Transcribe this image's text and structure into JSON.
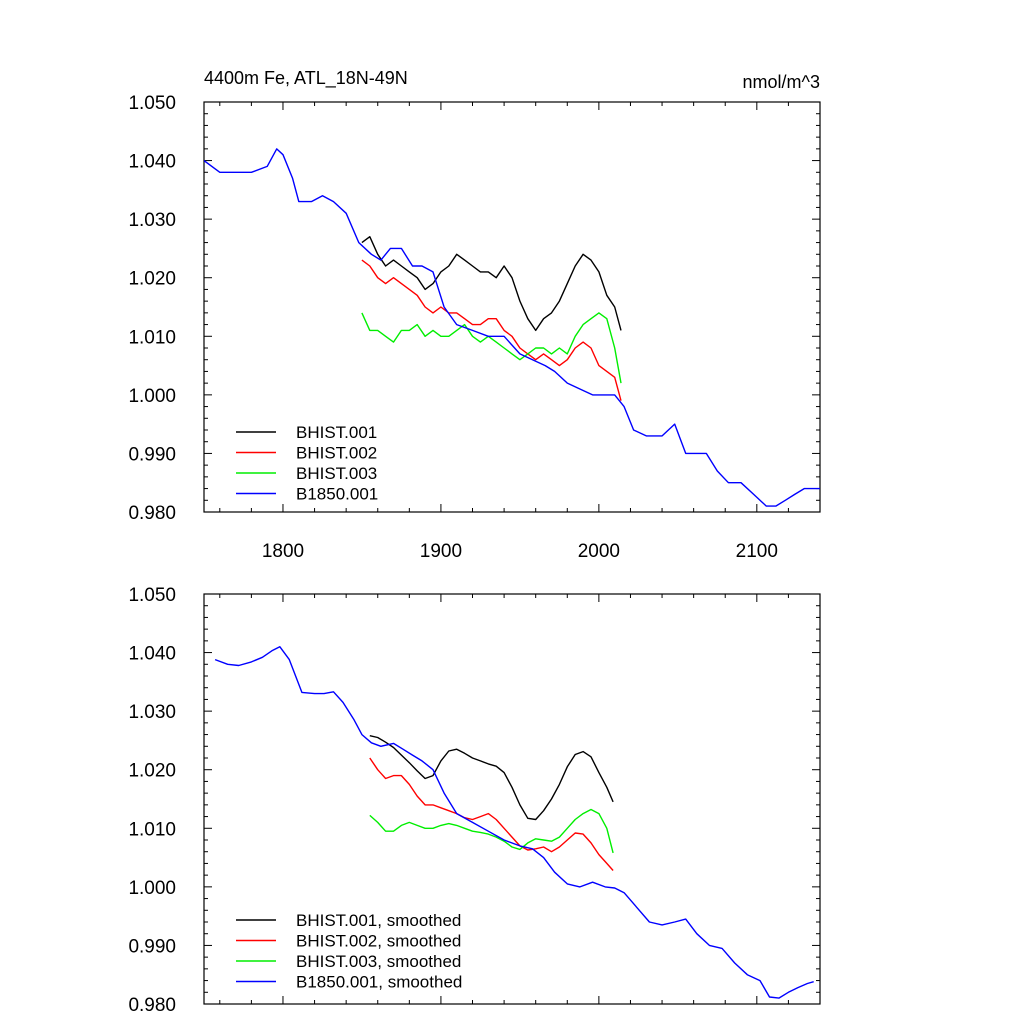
{
  "chart_data": [
    {
      "type": "line",
      "title_left": "4400m Fe, ATL_18N-49N",
      "title_right": "nmol/m^3",
      "xlim": [
        1750,
        2140
      ],
      "ylim": [
        0.98,
        1.05
      ],
      "xticks": [
        1800,
        1900,
        2000,
        2100
      ],
      "xtick_labels": [
        "1800",
        "1900",
        "2000",
        "2100"
      ],
      "yticks": [
        0.98,
        0.99,
        1.0,
        1.01,
        1.02,
        1.03,
        1.04,
        1.05
      ],
      "ytick_labels": [
        "0.980",
        "0.990",
        "1.000",
        "1.010",
        "1.020",
        "1.030",
        "1.040",
        "1.050"
      ],
      "legend_position": "bottom-left",
      "series": [
        {
          "name": "BHIST.001",
          "color": "#000000",
          "x": [
            1850,
            1855,
            1860,
            1865,
            1870,
            1875,
            1880,
            1885,
            1890,
            1895,
            1900,
            1905,
            1910,
            1915,
            1920,
            1925,
            1930,
            1935,
            1940,
            1945,
            1950,
            1955,
            1960,
            1965,
            1970,
            1975,
            1980,
            1985,
            1990,
            1995,
            2000,
            2005,
            2010,
            2014
          ],
          "y": [
            1.026,
            1.027,
            1.024,
            1.022,
            1.023,
            1.022,
            1.021,
            1.02,
            1.018,
            1.019,
            1.021,
            1.022,
            1.024,
            1.023,
            1.022,
            1.021,
            1.021,
            1.02,
            1.022,
            1.02,
            1.016,
            1.013,
            1.011,
            1.013,
            1.014,
            1.016,
            1.019,
            1.022,
            1.024,
            1.023,
            1.021,
            1.017,
            1.015,
            1.011
          ]
        },
        {
          "name": "BHIST.002",
          "color": "#ff0000",
          "x": [
            1850,
            1855,
            1860,
            1865,
            1870,
            1875,
            1880,
            1885,
            1890,
            1895,
            1900,
            1905,
            1910,
            1915,
            1920,
            1925,
            1930,
            1935,
            1940,
            1945,
            1950,
            1955,
            1960,
            1965,
            1970,
            1975,
            1980,
            1985,
            1990,
            1995,
            2000,
            2005,
            2010,
            2014
          ],
          "y": [
            1.023,
            1.022,
            1.02,
            1.019,
            1.02,
            1.019,
            1.018,
            1.017,
            1.015,
            1.014,
            1.015,
            1.014,
            1.014,
            1.013,
            1.012,
            1.012,
            1.013,
            1.013,
            1.011,
            1.01,
            1.008,
            1.007,
            1.006,
            1.007,
            1.006,
            1.005,
            1.006,
            1.008,
            1.009,
            1.008,
            1.005,
            1.004,
            1.003,
            0.999
          ]
        },
        {
          "name": "BHIST.003",
          "color": "#00ee00",
          "x": [
            1850,
            1855,
            1860,
            1865,
            1870,
            1875,
            1880,
            1885,
            1890,
            1895,
            1900,
            1905,
            1910,
            1915,
            1920,
            1925,
            1930,
            1935,
            1940,
            1945,
            1950,
            1955,
            1960,
            1965,
            1970,
            1975,
            1980,
            1985,
            1990,
            1995,
            2000,
            2005,
            2010,
            2014
          ],
          "y": [
            1.014,
            1.011,
            1.011,
            1.01,
            1.009,
            1.011,
            1.011,
            1.012,
            1.01,
            1.011,
            1.01,
            1.01,
            1.011,
            1.012,
            1.01,
            1.009,
            1.01,
            1.009,
            1.008,
            1.007,
            1.006,
            1.007,
            1.008,
            1.008,
            1.007,
            1.008,
            1.007,
            1.01,
            1.012,
            1.013,
            1.014,
            1.013,
            1.008,
            1.002
          ]
        },
        {
          "name": "B1850.001",
          "color": "#0000ff",
          "x": [
            1750,
            1760,
            1770,
            1780,
            1790,
            1796,
            1800,
            1806,
            1810,
            1818,
            1825,
            1832,
            1840,
            1848,
            1856,
            1862,
            1868,
            1875,
            1882,
            1888,
            1895,
            1902,
            1910,
            1920,
            1930,
            1940,
            1950,
            1958,
            1966,
            1972,
            1980,
            1988,
            1996,
            2004,
            2010,
            2016,
            2022,
            2030,
            2040,
            2048,
            2055,
            2062,
            2068,
            2075,
            2082,
            2090,
            2098,
            2106,
            2112,
            2118,
            2124,
            2130,
            2136,
            2140
          ],
          "y": [
            1.04,
            1.038,
            1.038,
            1.038,
            1.039,
            1.042,
            1.041,
            1.037,
            1.033,
            1.033,
            1.034,
            1.033,
            1.031,
            1.026,
            1.024,
            1.023,
            1.025,
            1.025,
            1.022,
            1.022,
            1.021,
            1.015,
            1.012,
            1.011,
            1.01,
            1.01,
            1.007,
            1.006,
            1.005,
            1.004,
            1.002,
            1.001,
            1.0,
            1.0,
            1.0,
            0.998,
            0.994,
            0.993,
            0.993,
            0.995,
            0.99,
            0.99,
            0.99,
            0.987,
            0.985,
            0.985,
            0.983,
            0.981,
            0.981,
            0.982,
            0.983,
            0.984,
            0.984,
            0.984
          ]
        }
      ]
    },
    {
      "type": "line",
      "xlim": [
        1750,
        2140
      ],
      "ylim": [
        0.98,
        1.05
      ],
      "xticks": [
        1800,
        1900,
        2000,
        2100
      ],
      "yticks": [
        0.98,
        0.99,
        1.0,
        1.01,
        1.02,
        1.03,
        1.04,
        1.05
      ],
      "ytick_labels": [
        "0.980",
        "0.990",
        "1.000",
        "1.010",
        "1.020",
        "1.030",
        "1.040",
        "1.050"
      ],
      "legend_position": "bottom-left",
      "series": [
        {
          "name": "BHIST.001, smoothed",
          "color": "#000000",
          "x": [
            1855,
            1860,
            1865,
            1870,
            1875,
            1880,
            1885,
            1890,
            1895,
            1900,
            1905,
            1910,
            1915,
            1920,
            1925,
            1930,
            1935,
            1940,
            1945,
            1950,
            1955,
            1960,
            1965,
            1970,
            1975,
            1980,
            1985,
            1990,
            1995,
            2000,
            2005,
            2009
          ],
          "y": [
            1.0258,
            1.0255,
            1.0247,
            1.0238,
            1.0225,
            1.0212,
            1.0198,
            1.0185,
            1.019,
            1.0215,
            1.0232,
            1.0235,
            1.0228,
            1.022,
            1.0215,
            1.021,
            1.0206,
            1.0195,
            1.017,
            1.014,
            1.0117,
            1.0115,
            1.013,
            1.015,
            1.0175,
            1.0205,
            1.0226,
            1.0231,
            1.0222,
            1.0195,
            1.017,
            1.0145
          ]
        },
        {
          "name": "BHIST.002, smoothed",
          "color": "#ff0000",
          "x": [
            1855,
            1860,
            1865,
            1870,
            1875,
            1880,
            1885,
            1890,
            1895,
            1900,
            1905,
            1910,
            1915,
            1920,
            1925,
            1930,
            1935,
            1940,
            1945,
            1950,
            1955,
            1960,
            1965,
            1970,
            1975,
            1980,
            1985,
            1990,
            1995,
            2000,
            2005,
            2009
          ],
          "y": [
            1.022,
            1.02,
            1.0185,
            1.019,
            1.019,
            1.0175,
            1.0155,
            1.014,
            1.014,
            1.0135,
            1.013,
            1.0125,
            1.0118,
            1.0115,
            1.012,
            1.0125,
            1.0115,
            1.01,
            1.0085,
            1.007,
            1.0063,
            1.0065,
            1.0068,
            1.006,
            1.0068,
            1.008,
            1.0092,
            1.009,
            1.0075,
            1.0055,
            1.004,
            1.0028
          ]
        },
        {
          "name": "BHIST.003, smoothed",
          "color": "#00ee00",
          "x": [
            1855,
            1860,
            1865,
            1870,
            1875,
            1880,
            1885,
            1890,
            1895,
            1900,
            1905,
            1910,
            1915,
            1920,
            1925,
            1930,
            1935,
            1940,
            1945,
            1950,
            1955,
            1960,
            1965,
            1970,
            1975,
            1980,
            1985,
            1990,
            1995,
            2000,
            2005,
            2009
          ],
          "y": [
            1.0122,
            1.011,
            1.0095,
            1.0095,
            1.0105,
            1.011,
            1.0105,
            1.01,
            1.01,
            1.0105,
            1.0108,
            1.0105,
            1.01,
            1.0095,
            1.0093,
            1.009,
            1.0085,
            1.0078,
            1.0068,
            1.0064,
            1.0075,
            1.0082,
            1.008,
            1.0078,
            1.0085,
            1.01,
            1.0115,
            1.0125,
            1.0132,
            1.0125,
            1.01,
            1.0058
          ]
        },
        {
          "name": "B1850.001, smoothed",
          "color": "#0000ff",
          "x": [
            1757,
            1765,
            1772,
            1780,
            1787,
            1793,
            1798,
            1804,
            1812,
            1820,
            1826,
            1832,
            1838,
            1845,
            1850,
            1856,
            1862,
            1870,
            1876,
            1882,
            1888,
            1895,
            1902,
            1910,
            1920,
            1930,
            1940,
            1950,
            1958,
            1965,
            1972,
            1980,
            1988,
            1996,
            2004,
            2010,
            2016,
            2024,
            2032,
            2040,
            2048,
            2055,
            2062,
            2070,
            2078,
            2086,
            2094,
            2102,
            2108,
            2114,
            2120,
            2126,
            2132,
            2136
          ],
          "y": [
            1.0388,
            1.038,
            1.0378,
            1.0384,
            1.0392,
            1.0403,
            1.041,
            1.0388,
            1.0332,
            1.033,
            1.033,
            1.0333,
            1.0315,
            1.0285,
            1.026,
            1.0246,
            1.024,
            1.0245,
            1.0235,
            1.0225,
            1.0215,
            1.02,
            1.016,
            1.0125,
            1.011,
            1.0095,
            1.008,
            1.007,
            1.0065,
            1.005,
            1.0025,
            1.0005,
            1.0,
            1.0008,
            1.0,
            0.9998,
            0.999,
            0.9965,
            0.994,
            0.9935,
            0.994,
            0.9945,
            0.992,
            0.99,
            0.9895,
            0.987,
            0.985,
            0.984,
            0.9812,
            0.981,
            0.982,
            0.9828,
            0.9835,
            0.9838
          ]
        }
      ]
    }
  ]
}
